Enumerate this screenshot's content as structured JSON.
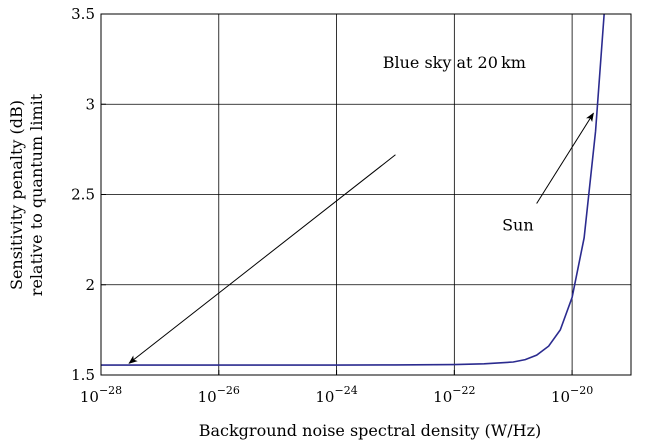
{
  "chart_data": {
    "type": "line",
    "title": "",
    "xlabel": "Background noise spectral density (W/Hz)",
    "ylabel_lines": [
      "Sensitivity penalty (dB)",
      "relative to quantum limit"
    ],
    "x_scale": "log",
    "x_range": [
      1e-28,
      1e-19
    ],
    "y_range": [
      1.5,
      3.5
    ],
    "grid": true,
    "x_ticks": [
      {
        "value": 1e-28,
        "base": "10",
        "exponent": "−28"
      },
      {
        "value": 1e-26,
        "base": "10",
        "exponent": "−26"
      },
      {
        "value": 1e-24,
        "base": "10",
        "exponent": "−24"
      },
      {
        "value": 1e-22,
        "base": "10",
        "exponent": "−22"
      },
      {
        "value": 1e-20,
        "base": "10",
        "exponent": "−20"
      }
    ],
    "y_ticks": [
      {
        "value": 1.5,
        "label": "1.5"
      },
      {
        "value": 2,
        "label": "2"
      },
      {
        "value": 2.5,
        "label": "2.5"
      },
      {
        "value": 3,
        "label": "3"
      },
      {
        "value": 3.5,
        "label": "3.5"
      }
    ],
    "series": [
      {
        "color": "#2b2b8f",
        "points": [
          [
            1e-28,
            1.555
          ],
          [
            1e-26,
            1.555
          ],
          [
            1e-24,
            1.555
          ],
          [
            1e-23,
            1.556
          ],
          [
            1e-22,
            1.558
          ],
          [
            3.2e-22,
            1.562
          ],
          [
            1e-21,
            1.572
          ],
          [
            1.6e-21,
            1.585
          ],
          [
            2.5e-21,
            1.61
          ],
          [
            4e-21,
            1.66
          ],
          [
            6.3e-21,
            1.75
          ],
          [
            1e-20,
            1.93
          ],
          [
            1.6e-20,
            2.26
          ],
          [
            2.5e-20,
            2.85
          ],
          [
            3.5e-20,
            3.5
          ]
        ]
      }
    ],
    "annotations": [
      {
        "text": "Blue sky at 20 km",
        "text_at": [
          1e-22,
          3.2
        ],
        "arrow_from": [
          1e-23,
          2.72
        ],
        "arrow_to": [
          3e-28,
          1.565
        ]
      },
      {
        "text": "Sun",
        "text_at": [
          1.2e-21,
          2.3
        ],
        "arrow_from": [
          2.5e-21,
          2.45
        ],
        "arrow_to": [
          2.3e-20,
          2.95
        ]
      }
    ]
  }
}
